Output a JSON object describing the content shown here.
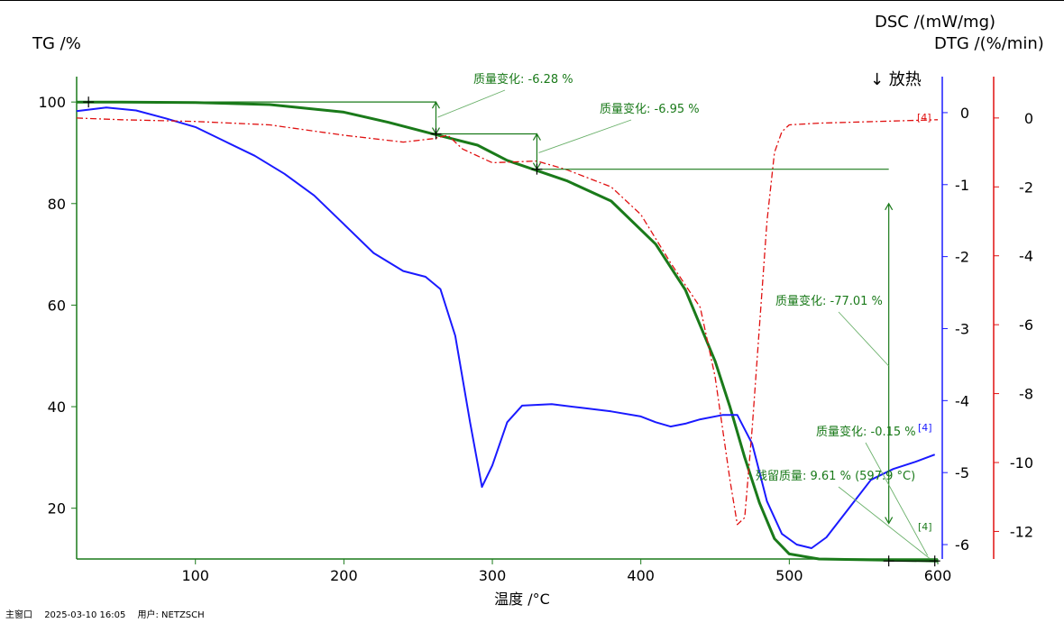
{
  "chart_data": {
    "type": "line",
    "xlabel": "温度 /°C",
    "xlim": [
      20,
      600
    ],
    "x_ticks": [
      100,
      200,
      300,
      400,
      500,
      600
    ],
    "axes": {
      "tg": {
        "label": "TG /%",
        "lim": [
          10,
          105
        ],
        "ticks": [
          20,
          40,
          60,
          80,
          100
        ],
        "color": "#1a7a1a"
      },
      "dsc": {
        "label": "DSC /(mW/mg)",
        "lim": [
          -6.2,
          0.5
        ],
        "ticks": [
          0,
          -1,
          -2,
          -3,
          -4,
          -5,
          -6
        ],
        "color": "#1a1aff"
      },
      "dtg": {
        "label": "DTG /(%/min)",
        "lim": [
          -12.8,
          1.2
        ],
        "ticks": [
          0,
          -2,
          -4,
          -6,
          -8,
          -10,
          -12
        ],
        "color": "#e01010"
      }
    },
    "exo_label": "↓ 放热",
    "series": [
      {
        "axis": "tg",
        "color": "#1a7a1a",
        "style": "solid",
        "x": [
          20,
          50,
          100,
          150,
          200,
          230,
          260,
          290,
          310,
          330,
          350,
          380,
          410,
          430,
          450,
          460,
          470,
          480,
          490,
          500,
          520,
          560,
          600
        ],
        "y": [
          100,
          100,
          99.9,
          99.5,
          98,
          96,
          93.7,
          91.5,
          88.5,
          86.5,
          84.5,
          80.5,
          72,
          63,
          49,
          40,
          30,
          21,
          14,
          11,
          10,
          9.8,
          9.61
        ]
      },
      {
        "axis": "dsc",
        "color": "#1a1aff",
        "style": "solid",
        "x": [
          20,
          40,
          60,
          80,
          100,
          120,
          140,
          160,
          180,
          200,
          220,
          240,
          255,
          265,
          275,
          285,
          293,
          300,
          310,
          320,
          340,
          360,
          380,
          400,
          410,
          420,
          430,
          440,
          455,
          465,
          475,
          485,
          495,
          505,
          515,
          525,
          540,
          555,
          570,
          585,
          598
        ],
        "y": [
          0.02,
          0.07,
          0.03,
          -0.08,
          -0.2,
          -0.4,
          -0.6,
          -0.85,
          -1.15,
          -1.55,
          -1.95,
          -2.2,
          -2.28,
          -2.45,
          -3.1,
          -4.3,
          -5.2,
          -4.9,
          -4.3,
          -4.07,
          -4.05,
          -4.1,
          -4.15,
          -4.22,
          -4.3,
          -4.36,
          -4.32,
          -4.26,
          -4.2,
          -4.2,
          -4.6,
          -5.4,
          -5.85,
          -6.0,
          -6.05,
          -5.9,
          -5.5,
          -5.1,
          -4.95,
          -4.85,
          -4.75
        ]
      },
      {
        "axis": "dtg",
        "color": "#e01010",
        "style": "dashdot",
        "x": [
          20,
          50,
          100,
          150,
          200,
          240,
          260,
          270,
          280,
          300,
          330,
          350,
          380,
          400,
          420,
          440,
          450,
          460,
          465,
          470,
          475,
          480,
          485,
          490,
          495,
          500,
          520,
          560,
          600
        ],
        "y": [
          0,
          -0.05,
          -0.1,
          -0.2,
          -0.5,
          -0.7,
          -0.6,
          -0.5,
          -0.9,
          -1.3,
          -1.25,
          -1.5,
          -2.0,
          -2.8,
          -4.2,
          -5.5,
          -7.5,
          -10.5,
          -11.8,
          -11.6,
          -9,
          -6,
          -3,
          -1,
          -0.4,
          -0.2,
          -0.15,
          -0.1,
          -0.05
        ]
      }
    ],
    "annotations": [
      {
        "text": "质量变化: -6.28 %"
      },
      {
        "text": "质量变化: -6.95 %"
      },
      {
        "text": "质量变化: -77.01 %"
      },
      {
        "text": "质量变化: -0.15 %"
      },
      {
        "text": "残留质量: 9.61 % (597.9 °C)"
      }
    ],
    "flags": [
      "[4]",
      "[4]",
      "[4]"
    ]
  },
  "footer": {
    "window": "主窗口",
    "datetime": "2025-03-10 16:05",
    "user": "用户: NETZSCH"
  }
}
